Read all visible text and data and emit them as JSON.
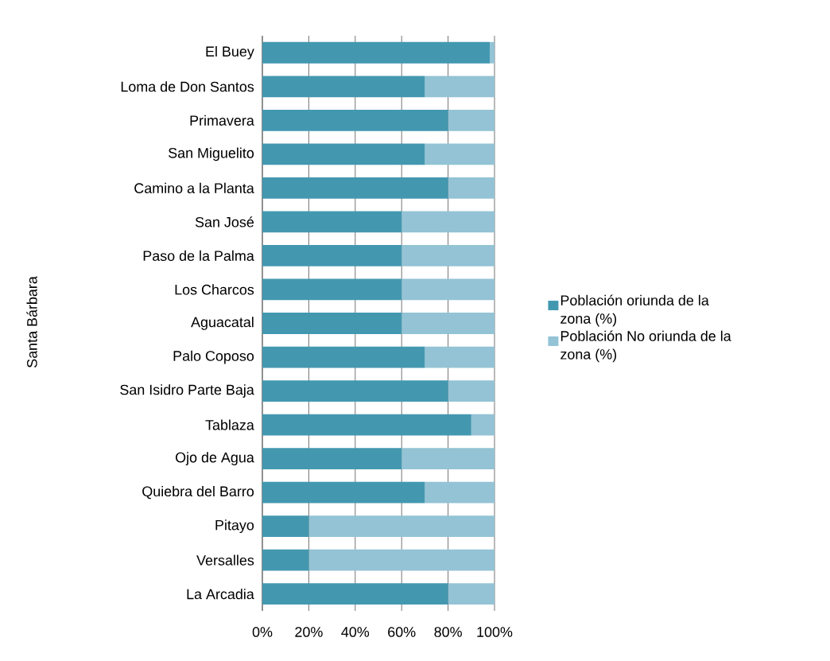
{
  "chart_data": {
    "type": "bar",
    "orientation": "horizontal",
    "stacked": true,
    "annotations": [
      "Santa Bárbara"
    ],
    "categories": [
      "El Buey",
      "Loma de Don Santos",
      "Primavera",
      "San Miguelito",
      "Camino a la Planta",
      "San José",
      "Paso de la Palma",
      "Los Charcos",
      "Aguacatal",
      "Palo Coposo",
      "San Isidro Parte Baja",
      "Tablaza",
      "Ojo de Agua",
      "Quiebra del Barro",
      "Pitayo",
      "Versalles",
      "La Arcadia"
    ],
    "series": [
      {
        "name": "Población oriunda de la zona (%)",
        "color": "#4398b0",
        "values": [
          98,
          70,
          80,
          70,
          80,
          60,
          60,
          60,
          60,
          70,
          80,
          90,
          60,
          70,
          20,
          20,
          80
        ]
      },
      {
        "name": "Población No oriunda de la zona (%)",
        "color": "#93c3d5",
        "values": [
          2,
          30,
          20,
          30,
          20,
          40,
          40,
          40,
          40,
          30,
          20,
          10,
          40,
          30,
          80,
          80,
          20
        ]
      }
    ],
    "xlim": [
      0,
      100
    ],
    "xticks": [
      {
        "value": 0,
        "label": "0%"
      },
      {
        "value": 20,
        "label": "20%"
      },
      {
        "value": 40,
        "label": "40%"
      },
      {
        "value": 60,
        "label": "60%"
      },
      {
        "value": 80,
        "label": "80%"
      },
      {
        "value": 100,
        "label": "100%"
      }
    ],
    "grid": "x",
    "legend": "right"
  }
}
